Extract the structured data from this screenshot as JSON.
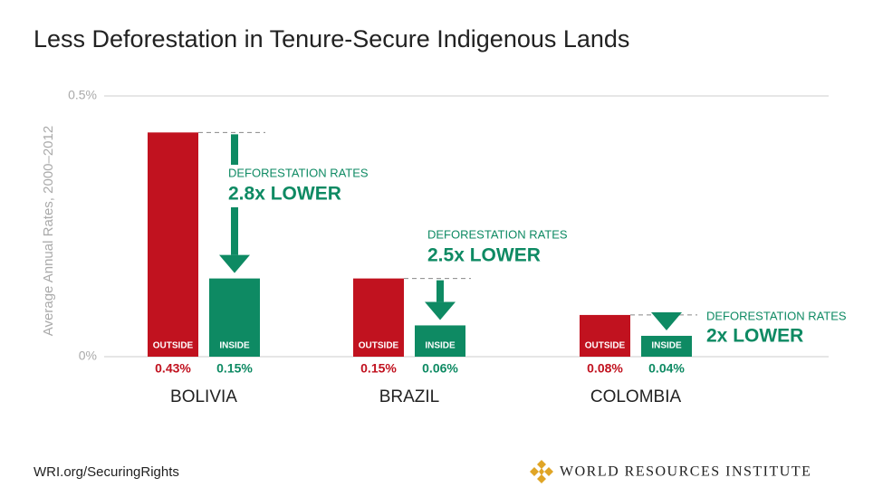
{
  "chart_data": {
    "type": "bar",
    "title": "Less Deforestation in Tenure-Secure Indigenous Lands",
    "y_label": "Average Annual Rates, 2000–2012",
    "categories": [
      "BOLIVIA",
      "BRAZIL",
      "COLOMBIA"
    ],
    "series": [
      {
        "name": "OUTSIDE",
        "color": "#c1121f",
        "values": [
          0.43,
          0.15,
          0.08
        ],
        "value_labels": [
          "0.43%",
          "0.15%",
          "0.08%"
        ]
      },
      {
        "name": "INSIDE",
        "color": "#0e8a63",
        "values": [
          0.15,
          0.06,
          0.04
        ],
        "value_labels": [
          "0.15%",
          "0.06%",
          "0.04%"
        ]
      }
    ],
    "ylim": [
      0,
      0.5
    ],
    "yticks": [
      {
        "value": 0,
        "label": "0%"
      },
      {
        "value": 0.5,
        "label": "0.5%"
      }
    ],
    "grid": true,
    "annotations": [
      {
        "line1": "DEFORESTATION RATES",
        "line2": "2.8x LOWER"
      },
      {
        "line1": "DEFORESTATION RATES",
        "line2": "2.5x LOWER"
      },
      {
        "line1": "DEFORESTATION RATES",
        "line2": "2x LOWER"
      }
    ]
  },
  "footer": {
    "url": "WRI.org/SecuringRights",
    "organization": "WORLD RESOURCES INSTITUTE"
  }
}
